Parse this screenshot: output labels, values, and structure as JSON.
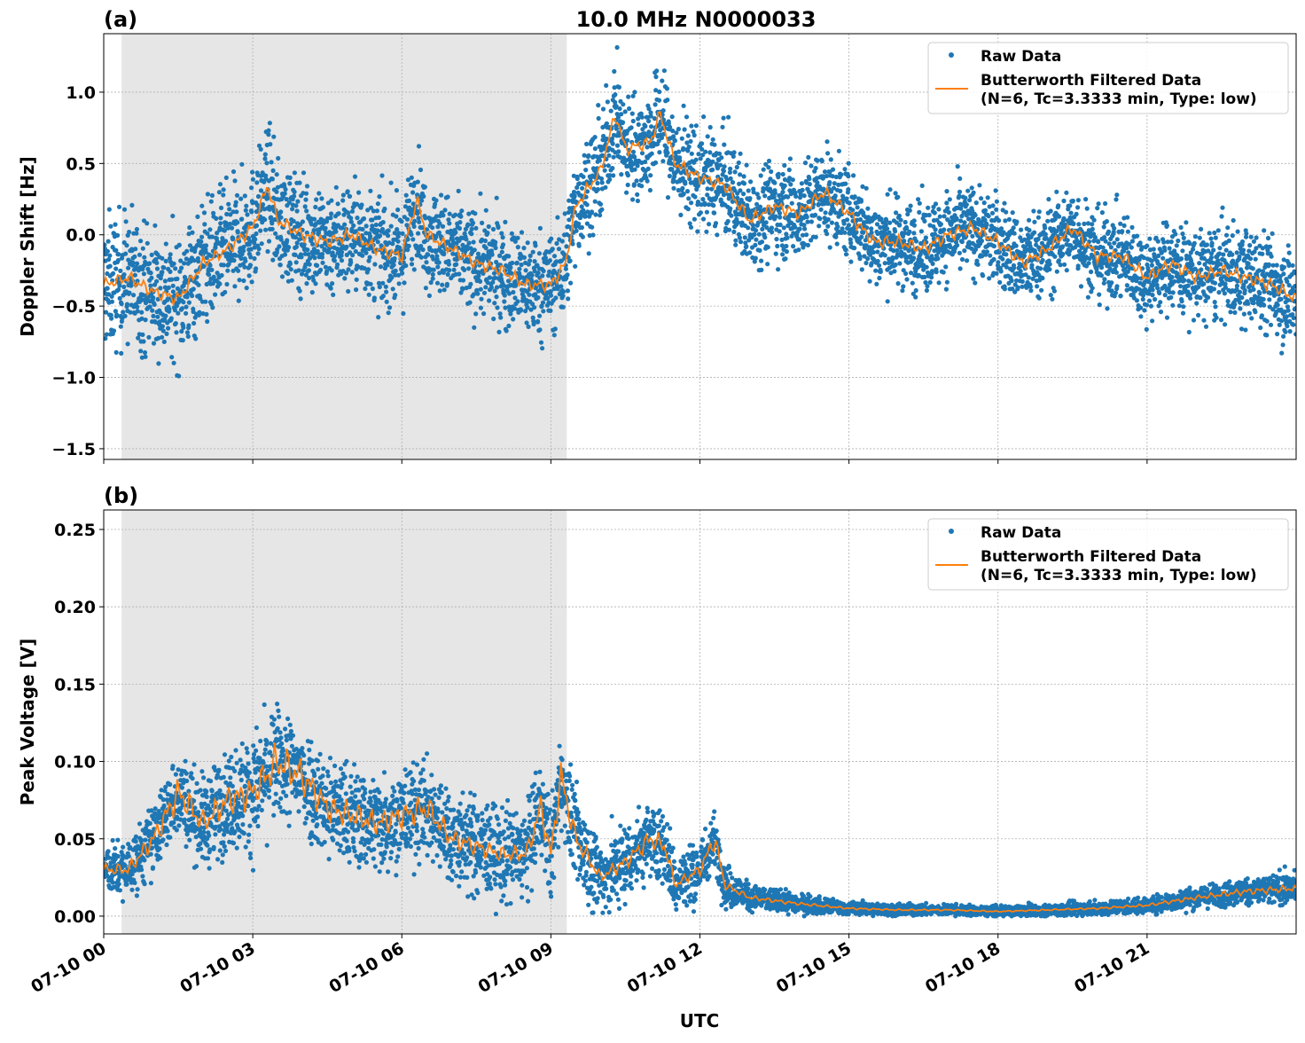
{
  "title": "10.0 MHz N0000033",
  "xlabel": "UTC",
  "colors": {
    "raw": "#1f77b4",
    "filtered": "#ff7f0e",
    "shade": "#e6e6e6"
  },
  "chart_data": [
    {
      "type": "scatter",
      "panel_label": "(a)",
      "ylabel": "Doppler Shift [Hz]",
      "xlim_hours": [
        0,
        24
      ],
      "ylim": [
        -1.575,
        1.41
      ],
      "yticks": [
        -1.5,
        -1.0,
        -0.5,
        0.0,
        0.5,
        1.0
      ],
      "ytick_labels": [
        "−1.5",
        "−1.0",
        "−0.5",
        "0.0",
        "0.5",
        "1.0"
      ],
      "xticks_hours": [
        0,
        3,
        6,
        9,
        12,
        15,
        18,
        21
      ],
      "xtick_labels": [
        "07-10 00",
        "07-10 03",
        "07-10 06",
        "07-10 09",
        "07-10 12",
        "07-10 15",
        "07-10 18",
        "07-10 21"
      ],
      "grid": true,
      "shaded_region_hours": [
        0.36,
        9.32
      ],
      "legend": {
        "position": "top-right",
        "entries": [
          "Raw Data",
          "Butterworth Filtered Data",
          "(N=6, Tc=3.3333 min, Type: low)"
        ]
      },
      "series": [
        {
          "name": "Butterworth Filtered Data",
          "type": "line",
          "x": [
            0,
            0.5,
            1,
            1.5,
            2,
            2.5,
            3,
            3.3,
            3.5,
            4,
            4.5,
            5,
            5.5,
            6,
            6.3,
            6.5,
            7,
            7.5,
            8,
            8.5,
            9,
            9.3,
            9.5,
            10,
            10.3,
            10.5,
            11,
            11.2,
            11.5,
            12,
            12.5,
            13,
            13.5,
            14,
            14.5,
            15,
            15.5,
            16,
            16.5,
            17,
            17.5,
            18,
            18.5,
            19,
            19.5,
            20,
            20.5,
            21,
            21.5,
            22,
            22.5,
            23,
            23.5,
            24
          ],
          "y": [
            -0.35,
            -0.3,
            -0.4,
            -0.45,
            -0.2,
            -0.1,
            0.05,
            0.35,
            0.1,
            0.0,
            -0.05,
            0.0,
            -0.1,
            -0.15,
            0.25,
            0.0,
            -0.1,
            -0.2,
            -0.25,
            -0.35,
            -0.35,
            -0.2,
            0.2,
            0.45,
            0.85,
            0.6,
            0.65,
            0.85,
            0.5,
            0.4,
            0.35,
            0.1,
            0.2,
            0.15,
            0.3,
            0.15,
            -0.05,
            -0.05,
            -0.1,
            0.0,
            0.05,
            -0.05,
            -0.2,
            -0.1,
            0.05,
            -0.15,
            -0.15,
            -0.3,
            -0.2,
            -0.3,
            -0.25,
            -0.3,
            -0.35,
            -0.45
          ]
        },
        {
          "name": "Raw Data",
          "type": "scatter",
          "band_x": [
            0,
            3,
            6,
            9,
            10.5,
            12,
            15,
            18,
            21,
            24
          ],
          "band_half_width": [
            0.45,
            0.4,
            0.35,
            0.35,
            0.35,
            0.35,
            0.3,
            0.3,
            0.3,
            0.35
          ]
        }
      ]
    },
    {
      "type": "scatter",
      "panel_label": "(b)",
      "ylabel": "Peak Voltage [V]",
      "xlim_hours": [
        0,
        24
      ],
      "ylim": [
        -0.0115,
        0.2626
      ],
      "yticks": [
        0.0,
        0.05,
        0.1,
        0.15,
        0.2,
        0.25
      ],
      "ytick_labels": [
        "0.00",
        "0.05",
        "0.10",
        "0.15",
        "0.20",
        "0.25"
      ],
      "xticks_hours": [
        0,
        3,
        6,
        9,
        12,
        15,
        18,
        21
      ],
      "xtick_labels": [
        "07-10 00",
        "07-10 03",
        "07-10 06",
        "07-10 09",
        "07-10 12",
        "07-10 15",
        "07-10 18",
        "07-10 21"
      ],
      "grid": true,
      "shaded_region_hours": [
        0.36,
        9.32
      ],
      "legend": {
        "position": "top-right",
        "entries": [
          "Raw Data",
          "Butterworth Filtered Data",
          "(N=6, Tc=3.3333 min, Type: low)"
        ]
      },
      "series": [
        {
          "name": "Butterworth Filtered Data",
          "type": "line",
          "x": [
            0,
            0.5,
            1,
            1.5,
            2,
            2.5,
            3,
            3.5,
            4,
            4.5,
            5,
            5.5,
            6,
            6.5,
            7,
            7.5,
            8,
            8.5,
            8.8,
            9,
            9.2,
            9.5,
            10,
            10.5,
            11,
            11.3,
            11.5,
            12,
            12.3,
            12.5,
            13,
            14,
            15,
            16,
            17,
            18,
            19,
            20,
            21,
            22,
            23,
            24
          ],
          "y": [
            0.03,
            0.03,
            0.05,
            0.08,
            0.06,
            0.075,
            0.08,
            0.1,
            0.09,
            0.07,
            0.065,
            0.06,
            0.065,
            0.07,
            0.05,
            0.045,
            0.04,
            0.04,
            0.07,
            0.04,
            0.09,
            0.05,
            0.025,
            0.035,
            0.05,
            0.045,
            0.02,
            0.03,
            0.05,
            0.02,
            0.012,
            0.008,
            0.005,
            0.004,
            0.004,
            0.003,
            0.004,
            0.005,
            0.007,
            0.012,
            0.016,
            0.018
          ]
        },
        {
          "name": "Raw Data",
          "type": "scatter",
          "band_x": [
            0,
            3,
            6,
            9,
            10.5,
            12,
            13,
            15,
            18,
            21,
            24
          ],
          "band_half_width": [
            0.015,
            0.035,
            0.03,
            0.03,
            0.025,
            0.02,
            0.008,
            0.004,
            0.003,
            0.005,
            0.01
          ]
        }
      ]
    }
  ]
}
